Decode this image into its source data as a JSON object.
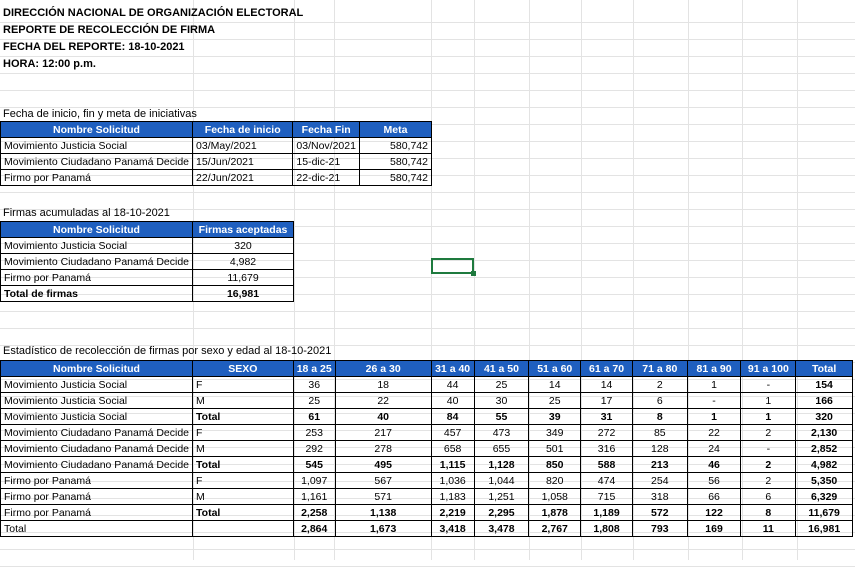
{
  "header": {
    "line1": "DIRECCIÓN NACIONAL DE ORGANIZACIÓN ELECTORAL",
    "line2": "REPORTE DE RECOLECCIÓN DE FIRMA",
    "line3": "FECHA DEL REPORTE: 18-10-2021",
    "line4": "HORA: 12:00 p.m."
  },
  "table1": {
    "caption": "Fecha de inicio, fin y meta de iniciativas",
    "columns": [
      "Nombre Solicitud",
      "Fecha de inicio",
      "Fecha Fin",
      "Meta"
    ],
    "rows": [
      [
        "Movimiento Justicia Social",
        "03/May/2021",
        "03/Nov/2021",
        "580,742"
      ],
      [
        "Movimiento Ciudadano Panamá Decide",
        "15/Jun/2021",
        "15-dic-21",
        "580,742"
      ],
      [
        "Firmo por Panamá",
        "22/Jun/2021",
        "22-dic-21",
        "580,742"
      ]
    ]
  },
  "table2": {
    "caption": "Firmas acumuladas al 18-10-2021",
    "columns": [
      "Nombre Solicitud",
      "Firmas aceptadas"
    ],
    "rows": [
      [
        "Movimiento Justicia Social",
        "320"
      ],
      [
        "Movimiento Ciudadano Panamá Decide",
        "4,982"
      ],
      [
        "Firmo por Panamá",
        "11,679"
      ]
    ],
    "total": [
      "Total de firmas",
      "16,981"
    ]
  },
  "table3": {
    "caption": "Estadístico de recolección de firmas por sexo y edad al 18-10-2021",
    "columns": [
      "Nombre Solicitud",
      "SEXO",
      "18 a 25",
      "26 a 30",
      "31 a 40",
      "41 a 50",
      "51 a 60",
      "61 a 70",
      "71 a 80",
      "81 a 90",
      "91 a 100",
      "Total"
    ],
    "rows": [
      {
        "bold": false,
        "cells": [
          "Movimiento Justicia Social",
          "F",
          "36",
          "18",
          "44",
          "25",
          "14",
          "14",
          "2",
          "1",
          "-",
          "154"
        ]
      },
      {
        "bold": false,
        "cells": [
          "Movimiento Justicia Social",
          "M",
          "25",
          "22",
          "40",
          "30",
          "25",
          "17",
          "6",
          "-",
          "1",
          "166"
        ]
      },
      {
        "bold": true,
        "cells": [
          "Movimiento Justicia Social",
          "Total",
          "61",
          "40",
          "84",
          "55",
          "39",
          "31",
          "8",
          "1",
          "1",
          "320"
        ]
      },
      {
        "bold": false,
        "cells": [
          "Movimiento Ciudadano Panamá Decide",
          "F",
          "253",
          "217",
          "457",
          "473",
          "349",
          "272",
          "85",
          "22",
          "2",
          "2,130"
        ]
      },
      {
        "bold": false,
        "cells": [
          "Movimiento Ciudadano Panamá Decide",
          "M",
          "292",
          "278",
          "658",
          "655",
          "501",
          "316",
          "128",
          "24",
          "-",
          "2,852"
        ]
      },
      {
        "bold": true,
        "cells": [
          "Movimiento Ciudadano Panamá Decide",
          "Total",
          "545",
          "495",
          "1,115",
          "1,128",
          "850",
          "588",
          "213",
          "46",
          "2",
          "4,982"
        ]
      },
      {
        "bold": false,
        "cells": [
          "Firmo por Panamá",
          "F",
          "1,097",
          "567",
          "1,036",
          "1,044",
          "820",
          "474",
          "254",
          "56",
          "2",
          "5,350"
        ]
      },
      {
        "bold": false,
        "cells": [
          "Firmo por Panamá",
          "M",
          "1,161",
          "571",
          "1,183",
          "1,251",
          "1,058",
          "715",
          "318",
          "66",
          "6",
          "6,329"
        ]
      },
      {
        "bold": true,
        "cells": [
          "Firmo por Panamá",
          "Total",
          "2,258",
          "1,138",
          "2,219",
          "2,295",
          "1,878",
          "1,189",
          "572",
          "122",
          "8",
          "11,679"
        ]
      },
      {
        "bold": true,
        "cells": [
          "Total",
          "",
          "2,864",
          "1,673",
          "3,418",
          "3,478",
          "2,767",
          "1,808",
          "793",
          "169",
          "11",
          "16,981"
        ]
      }
    ]
  }
}
